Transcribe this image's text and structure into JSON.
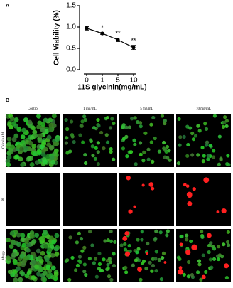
{
  "chart_data": {
    "type": "line",
    "panel_label": "A",
    "x_label": "11S glycinin(mg/mL)",
    "y_label": "Cell Viability (%)",
    "categories": [
      "0",
      "1",
      "5",
      "10"
    ],
    "series": [
      {
        "name": "Cell Viability",
        "color": "#000000",
        "values": [
          0.97,
          0.85,
          0.7,
          0.52
        ],
        "errors": [
          0.04,
          0.02,
          0.04,
          0.05
        ],
        "annotations": [
          null,
          "*",
          "**",
          "**"
        ]
      }
    ],
    "ylim": [
      0,
      1.5
    ],
    "yticks": [
      {
        "value": 0,
        "label": "0.0"
      },
      {
        "value": 0.5,
        "label": "0.5"
      },
      {
        "value": 1,
        "label": "1.0"
      },
      {
        "value": 1.5,
        "label": "1.5"
      }
    ]
  },
  "panel_b": {
    "label": "B",
    "columns": [
      "Control",
      "1 mg/mL",
      "5 mg/mL",
      "10 mg/mL"
    ],
    "rows": [
      "CalceinAM",
      "PI",
      "Merge"
    ]
  }
}
